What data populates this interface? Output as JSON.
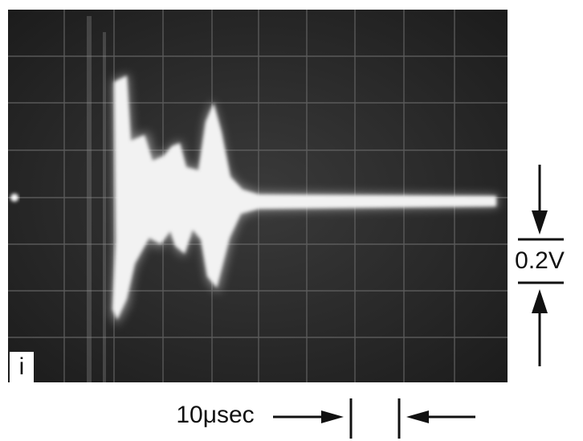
{
  "screen_label": "i",
  "voltage_scale": "0.2V",
  "time_scale": "10μsec"
}
